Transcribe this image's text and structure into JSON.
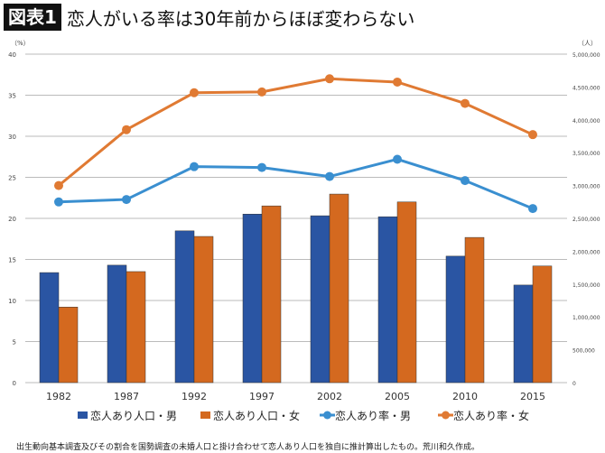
{
  "title": {
    "badge": "図表1",
    "text": "恋人がいる率は30年前からほぼ変わらない"
  },
  "chart_data": {
    "type": "bar+line",
    "categories": [
      "1982",
      "1987",
      "1992",
      "1997",
      "2002",
      "2005",
      "2010",
      "2015"
    ],
    "left_axis": {
      "unit": "（%）",
      "range": [
        0,
        40
      ],
      "ticks": [
        "0",
        "5",
        "10",
        "15",
        "20",
        "25",
        "30",
        "35",
        "40"
      ]
    },
    "right_axis": {
      "unit": "（人）",
      "range": [
        0,
        5000000
      ],
      "ticks": [
        "0",
        "500,000",
        "1,000,000",
        "1,500,000",
        "2,000,000",
        "2,500,000",
        "3,000,000",
        "3,500,000",
        "4,000,000",
        "4,500,000",
        "5,000,000"
      ]
    },
    "grid": true,
    "legend_position": "bottom",
    "series": [
      {
        "name": "恋人あり人口・男",
        "type": "bar",
        "axis": "right",
        "color": "#2a55a3",
        "values": [
          1675000,
          1787500,
          2310000,
          2565000,
          2540000,
          2525000,
          1925000,
          1485000
        ]
      },
      {
        "name": "恋人あり人口・女",
        "type": "bar",
        "axis": "right",
        "color": "#d4691f",
        "values": [
          1150000,
          1690000,
          2225000,
          2690000,
          2870000,
          2750000,
          2210000,
          1775000
        ]
      },
      {
        "name": "恋人あり率・男",
        "type": "line",
        "axis": "left",
        "color": "#3a8fd0",
        "values": [
          22.0,
          22.3,
          26.3,
          26.2,
          25.1,
          27.2,
          24.6,
          21.2
        ]
      },
      {
        "name": "恋人あり率・女",
        "type": "line",
        "axis": "left",
        "color": "#e07a33",
        "values": [
          24.0,
          30.8,
          35.3,
          35.4,
          37.0,
          36.6,
          34.0,
          30.2
        ]
      }
    ]
  },
  "note": "出生動向基本調査及びその割合を国勢調査の未婚人口と掛け合わせて恋人あり人口を独自に推計算出したもの。荒川和久作成。"
}
